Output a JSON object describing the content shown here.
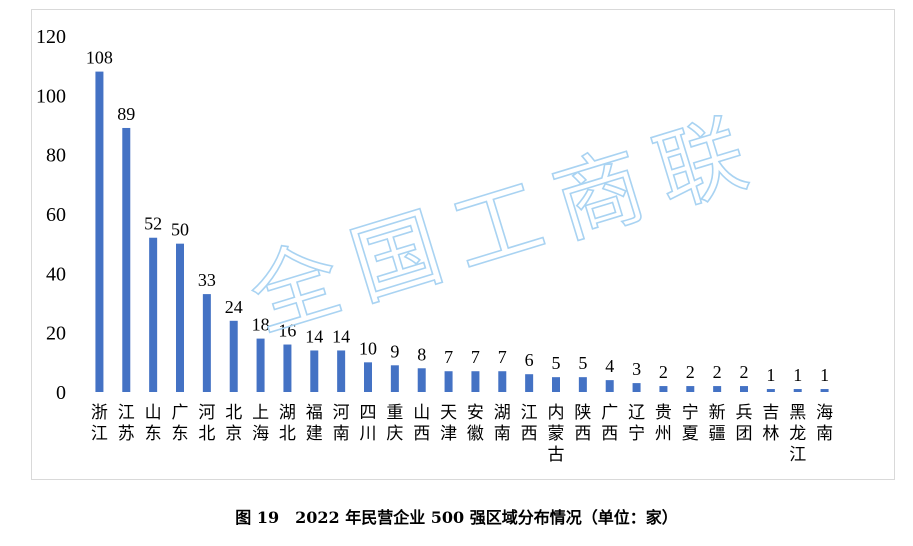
{
  "chart_data": {
    "type": "bar",
    "categories": [
      "浙江",
      "江苏",
      "山东",
      "广东",
      "河北",
      "北京",
      "上海",
      "湖北",
      "福建",
      "河南",
      "四川",
      "重庆",
      "山西",
      "天津",
      "安徽",
      "湖南",
      "江西",
      "内蒙古",
      "陕西",
      "广西",
      "辽宁",
      "贵州",
      "宁夏",
      "新疆",
      "兵团",
      "吉林",
      "黑龙江",
      "海南"
    ],
    "values": [
      108,
      89,
      52,
      50,
      33,
      24,
      18,
      16,
      14,
      14,
      10,
      9,
      8,
      7,
      7,
      7,
      6,
      5,
      5,
      4,
      3,
      2,
      2,
      2,
      2,
      1,
      1,
      1
    ],
    "ylim": [
      0,
      120
    ],
    "yticks": [
      0,
      20,
      40,
      60,
      80,
      100,
      120
    ],
    "bar_color": "#4472c4",
    "grid": false,
    "data_labels": true
  },
  "watermark": "全国工商联",
  "caption": "图 19　2022 年民营企业 500 强区域分布情况（单位：家）"
}
